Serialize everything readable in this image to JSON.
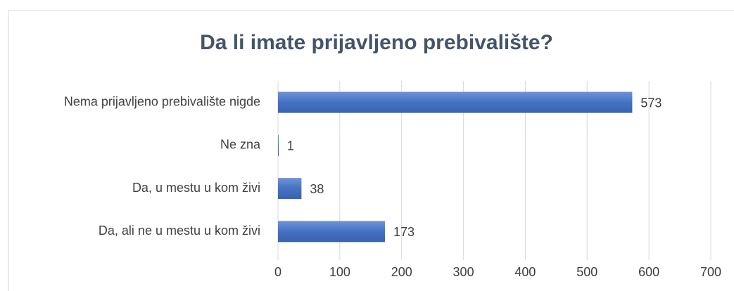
{
  "chart_data": {
    "type": "bar",
    "orientation": "horizontal",
    "title": "Da li imate prijavljeno prebivalište?",
    "categories": [
      "Nema prijavljeno prebivalište nigde",
      "Ne zna",
      "Da, u mestu u kom živi",
      "Da, ali ne u mestu u kom živi"
    ],
    "values": [
      573,
      1,
      38,
      173
    ],
    "color": "#4472c4",
    "xlim": [
      0,
      700
    ],
    "xticks": [
      0,
      100,
      200,
      300,
      400,
      500,
      600,
      700
    ],
    "grid": true
  }
}
